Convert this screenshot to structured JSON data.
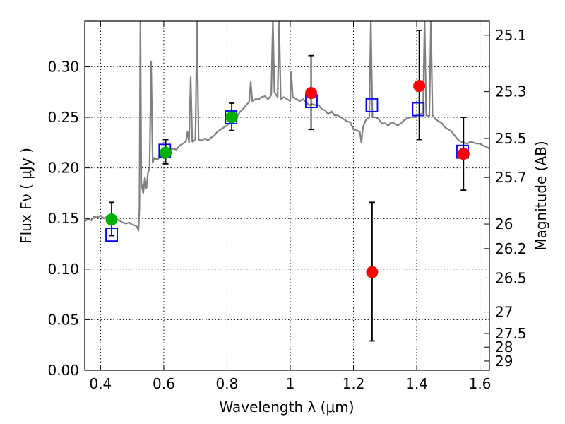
{
  "chart_data": {
    "type": "scatter",
    "xlabel": "Wavelength  λ (μm)",
    "ylabel": "Flux  Fν  ( μJy )",
    "ylabel_right": "Magnitude (AB)",
    "xlim": [
      0.35,
      1.63
    ],
    "ylim": [
      0.0,
      0.345
    ],
    "x_ticks": [
      0.4,
      0.6,
      0.8,
      1.0,
      1.2,
      1.4,
      1.6
    ],
    "x_tick_labels": [
      "0.4",
      "0.6",
      "0.8",
      "1",
      "1.2",
      "1.4",
      "1.6"
    ],
    "y_ticks": [
      0.0,
      0.05,
      0.1,
      0.15,
      0.2,
      0.25,
      0.3
    ],
    "y_tick_labels": [
      "0.00",
      "0.05",
      "0.10",
      "0.15",
      "0.20",
      "0.25",
      "0.30"
    ],
    "right_ticks": [
      {
        "label": "25.1",
        "mag": 25.1
      },
      {
        "label": "25.3",
        "mag": 25.3
      },
      {
        "label": "25.5",
        "mag": 25.5
      },
      {
        "label": "25.7",
        "mag": 25.7
      },
      {
        "label": "26",
        "mag": 26.0
      },
      {
        "label": "26.2",
        "mag": 26.2
      },
      {
        "label": "26.5",
        "mag": 26.5
      },
      {
        "label": "27",
        "mag": 27.0
      },
      {
        "label": "27.5",
        "mag": 27.5
      },
      {
        "label": "28",
        "mag": 28.0
      },
      {
        "label": "29",
        "mag": 29.0
      }
    ],
    "grid": true,
    "series": [
      {
        "style": "line",
        "color": "#808080",
        "points": [
          [
            0.35,
            0.147
          ],
          [
            0.36,
            0.15
          ],
          [
            0.37,
            0.148
          ],
          [
            0.38,
            0.152
          ],
          [
            0.39,
            0.151
          ],
          [
            0.4,
            0.153
          ],
          [
            0.41,
            0.15
          ],
          [
            0.42,
            0.152
          ],
          [
            0.43,
            0.153
          ],
          [
            0.44,
            0.151
          ],
          [
            0.45,
            0.149
          ],
          [
            0.46,
            0.148
          ],
          [
            0.47,
            0.146
          ],
          [
            0.48,
            0.145
          ],
          [
            0.49,
            0.146
          ],
          [
            0.5,
            0.144
          ],
          [
            0.51,
            0.143
          ],
          [
            0.515,
            0.142
          ],
          [
            0.52,
            0.138
          ],
          [
            0.523,
            0.16
          ],
          [
            0.526,
            0.345
          ],
          [
            0.529,
            0.185
          ],
          [
            0.535,
            0.175
          ],
          [
            0.54,
            0.19
          ],
          [
            0.545,
            0.18
          ],
          [
            0.55,
            0.195
          ],
          [
            0.555,
            0.2
          ],
          [
            0.56,
            0.305
          ],
          [
            0.565,
            0.205
          ],
          [
            0.57,
            0.21
          ],
          [
            0.58,
            0.208
          ],
          [
            0.59,
            0.212
          ],
          [
            0.6,
            0.214
          ],
          [
            0.61,
            0.216
          ],
          [
            0.62,
            0.218
          ],
          [
            0.63,
            0.219
          ],
          [
            0.64,
            0.218
          ],
          [
            0.65,
            0.222
          ],
          [
            0.66,
            0.224
          ],
          [
            0.67,
            0.226
          ],
          [
            0.675,
            0.236
          ],
          [
            0.68,
            0.225
          ],
          [
            0.685,
            0.29
          ],
          [
            0.69,
            0.226
          ],
          [
            0.7,
            0.228
          ],
          [
            0.705,
            0.345
          ],
          [
            0.71,
            0.228
          ],
          [
            0.72,
            0.227
          ],
          [
            0.73,
            0.229
          ],
          [
            0.74,
            0.227
          ],
          [
            0.75,
            0.23
          ],
          [
            0.76,
            0.232
          ],
          [
            0.77,
            0.236
          ],
          [
            0.78,
            0.238
          ],
          [
            0.79,
            0.24
          ],
          [
            0.8,
            0.242
          ],
          [
            0.81,
            0.245
          ],
          [
            0.82,
            0.247
          ],
          [
            0.83,
            0.25
          ],
          [
            0.84,
            0.255
          ],
          [
            0.85,
            0.258
          ],
          [
            0.86,
            0.262
          ],
          [
            0.87,
            0.265
          ],
          [
            0.875,
            0.285
          ],
          [
            0.88,
            0.266
          ],
          [
            0.89,
            0.268
          ],
          [
            0.9,
            0.268
          ],
          [
            0.91,
            0.27
          ],
          [
            0.92,
            0.271
          ],
          [
            0.93,
            0.268
          ],
          [
            0.94,
            0.272
          ],
          [
            0.945,
            0.345
          ],
          [
            0.95,
            0.275
          ],
          [
            0.96,
            0.27
          ],
          [
            0.965,
            0.345
          ],
          [
            0.97,
            0.268
          ],
          [
            0.98,
            0.27
          ],
          [
            0.99,
            0.268
          ],
          [
            1.0,
            0.266
          ],
          [
            1.003,
            0.295
          ],
          [
            1.008,
            0.27
          ],
          [
            1.02,
            0.268
          ],
          [
            1.03,
            0.266
          ],
          [
            1.04,
            0.268
          ],
          [
            1.05,
            0.265
          ],
          [
            1.06,
            0.262
          ],
          [
            1.07,
            0.263
          ],
          [
            1.08,
            0.262
          ],
          [
            1.09,
            0.262
          ],
          [
            1.1,
            0.258
          ],
          [
            1.11,
            0.257
          ],
          [
            1.12,
            0.253
          ],
          [
            1.13,
            0.256
          ],
          [
            1.14,
            0.252
          ],
          [
            1.15,
            0.252
          ],
          [
            1.16,
            0.25
          ],
          [
            1.17,
            0.248
          ],
          [
            1.18,
            0.246
          ],
          [
            1.19,
            0.245
          ],
          [
            1.2,
            0.238
          ],
          [
            1.21,
            0.237
          ],
          [
            1.22,
            0.236
          ],
          [
            1.225,
            0.225
          ],
          [
            1.23,
            0.24
          ],
          [
            1.24,
            0.248
          ],
          [
            1.25,
            0.25
          ],
          [
            1.255,
            0.345
          ],
          [
            1.26,
            0.25
          ],
          [
            1.27,
            0.25
          ],
          [
            1.28,
            0.248
          ],
          [
            1.29,
            0.244
          ],
          [
            1.3,
            0.244
          ],
          [
            1.31,
            0.242
          ],
          [
            1.32,
            0.245
          ],
          [
            1.33,
            0.244
          ],
          [
            1.34,
            0.242
          ],
          [
            1.35,
            0.244
          ],
          [
            1.36,
            0.247
          ],
          [
            1.37,
            0.249
          ],
          [
            1.38,
            0.25
          ],
          [
            1.39,
            0.25
          ],
          [
            1.4,
            0.252
          ],
          [
            1.41,
            0.253
          ],
          [
            1.42,
            0.254
          ],
          [
            1.425,
            0.345
          ],
          [
            1.43,
            0.252
          ],
          [
            1.44,
            0.251
          ],
          [
            1.445,
            0.345
          ],
          [
            1.45,
            0.252
          ],
          [
            1.46,
            0.248
          ],
          [
            1.47,
            0.246
          ],
          [
            1.48,
            0.244
          ],
          [
            1.49,
            0.24
          ],
          [
            1.5,
            0.238
          ],
          [
            1.51,
            0.236
          ],
          [
            1.52,
            0.232
          ],
          [
            1.53,
            0.228
          ],
          [
            1.54,
            0.226
          ],
          [
            1.55,
            0.225
          ],
          [
            1.56,
            0.224
          ],
          [
            1.57,
            0.226
          ],
          [
            1.58,
            0.225
          ],
          [
            1.59,
            0.224
          ],
          [
            1.6,
            0.224
          ],
          [
            1.61,
            0.222
          ],
          [
            1.62,
            0.221
          ],
          [
            1.63,
            0.219
          ]
        ]
      },
      {
        "style": "open-square",
        "color": "#0000ff",
        "points": [
          [
            0.435,
            0.134
          ],
          [
            0.603,
            0.217
          ],
          [
            0.813,
            0.25
          ],
          [
            1.067,
            0.266
          ],
          [
            1.258,
            0.262
          ],
          [
            1.405,
            0.258
          ],
          [
            1.545,
            0.216
          ]
        ]
      },
      {
        "style": "circle",
        "color": "#00b000",
        "points": [
          {
            "x": 0.435,
            "y": 0.149,
            "err_lo": 0.016,
            "err_hi": 0.017
          },
          {
            "x": 0.606,
            "y": 0.215,
            "err_lo": 0.011,
            "err_hi": 0.013
          },
          {
            "x": 0.815,
            "y": 0.25,
            "err_lo": 0.013,
            "err_hi": 0.014
          }
        ]
      },
      {
        "style": "circle",
        "color": "#ff0000",
        "points": [
          {
            "x": 1.066,
            "y": 0.274,
            "err_lo": 0.036,
            "err_hi": 0.037
          },
          {
            "x": 1.259,
            "y": 0.097,
            "err_lo": 0.068,
            "err_hi": 0.069
          },
          {
            "x": 1.408,
            "y": 0.281,
            "err_lo": 0.053,
            "err_hi": 0.055
          },
          {
            "x": 1.548,
            "y": 0.214,
            "err_lo": 0.036,
            "err_hi": 0.036
          }
        ]
      }
    ]
  }
}
